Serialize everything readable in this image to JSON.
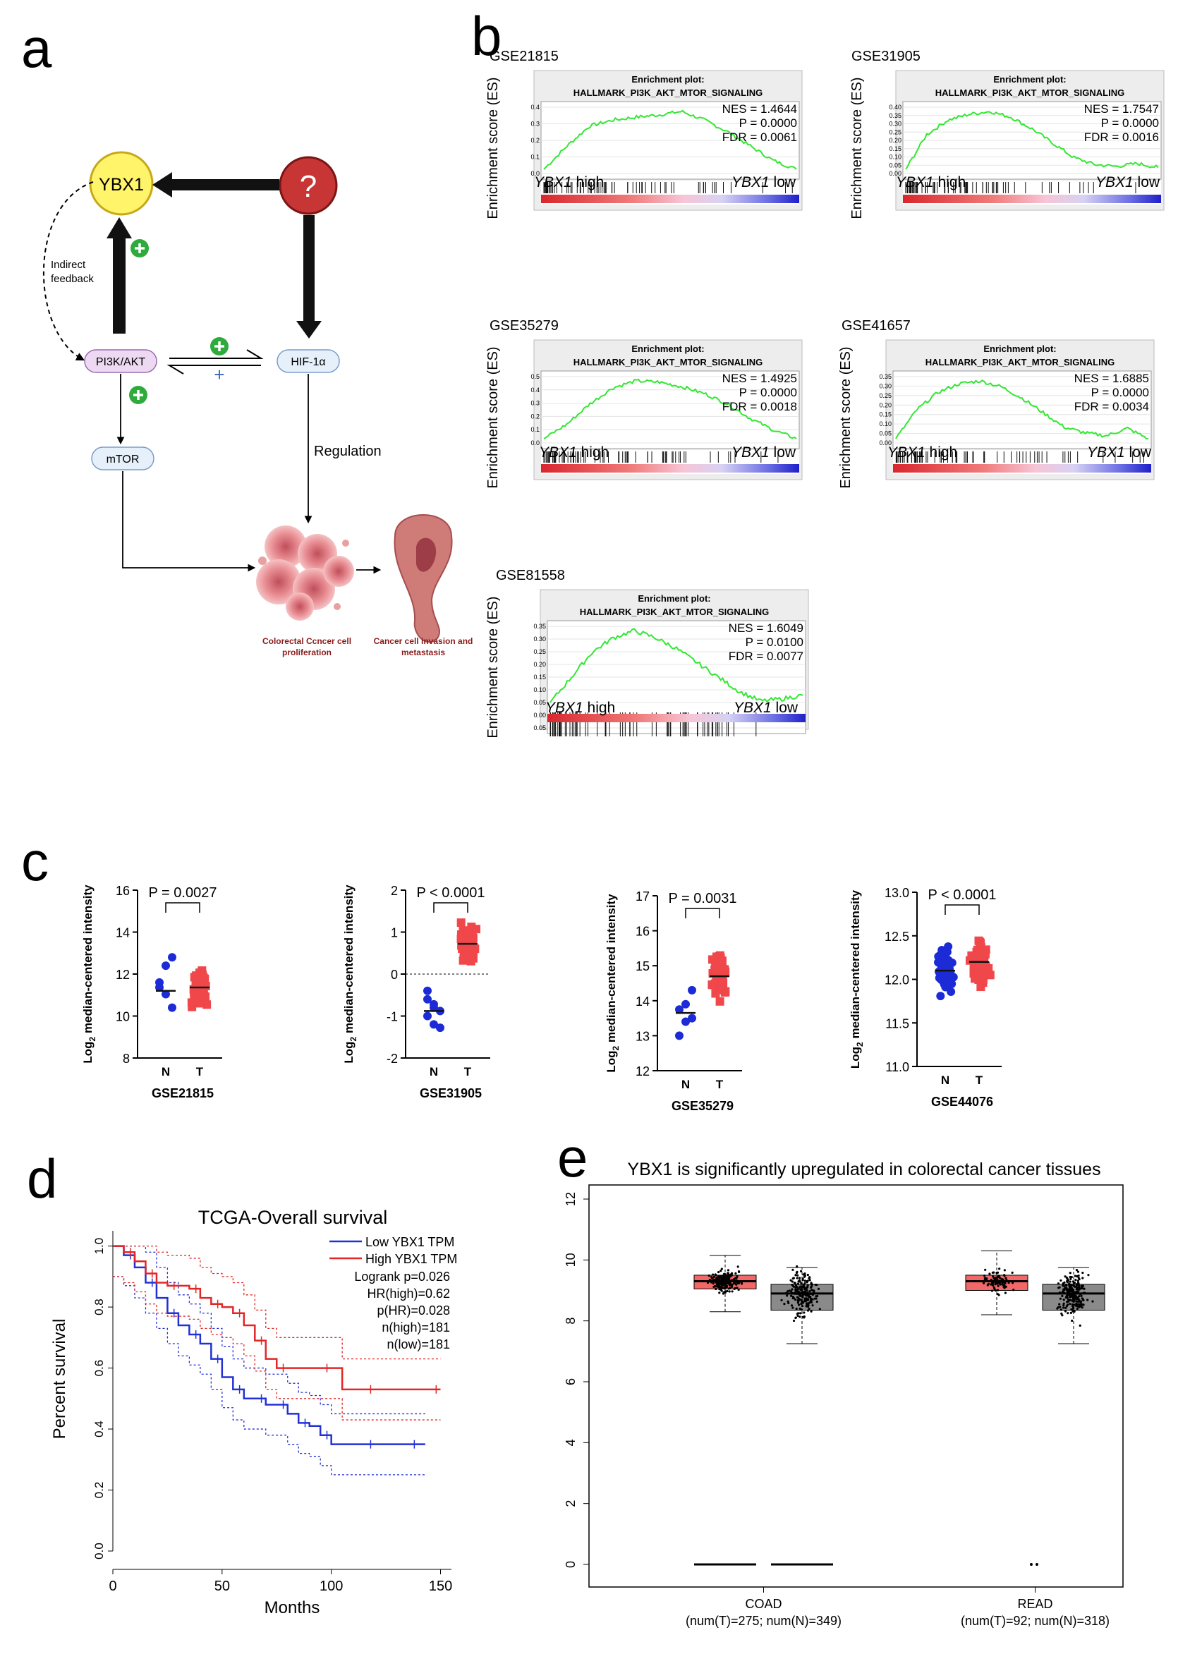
{
  "panels": {
    "a": "a",
    "b": "b",
    "c": "c",
    "d": "d",
    "e": "e"
  },
  "diagram": {
    "ybx1": "YBX1",
    "question": "?",
    "pi3k": "PI3K/AKT",
    "hif": "HIF-1α",
    "mtor": "mTOR",
    "feedback_1": "Indirect",
    "feedback_2": "feedback",
    "regulation": "Regulation",
    "plus": "+",
    "prolif_1": "Colorectal Ccncer cell",
    "prolif_2": "proliferation",
    "meta_1": "Cancer cell invasion and",
    "meta_2": "metastasis"
  },
  "gsea": {
    "plot_title_1": "Enrichment plot:",
    "plot_title_2": "HALLMARK_PI3K_AKT_MTOR_SIGNALING",
    "ylabel": "Enrichment score (ES)",
    "gene": "YBX1",
    "high": " high",
    "low": " low",
    "panels": [
      {
        "id": "GSE21815",
        "nes": "NES = 1.4644",
        "p": "P = 0.0000",
        "fdr": "FDR = 0.0061",
        "ticks": [
          "0.4",
          "0.3",
          "0.2",
          "0.1",
          "0.0"
        ]
      },
      {
        "id": "GSE31905",
        "nes": "NES = 1.7547",
        "p": "P = 0.0000",
        "fdr": "FDR = 0.0016",
        "ticks": [
          "0.40",
          "0.35",
          "0.30",
          "0.25",
          "0.20",
          "0.15",
          "0.10",
          "0.05",
          "0.00"
        ]
      },
      {
        "id": "GSE35279",
        "nes": "NES = 1.4925",
        "p": "P = 0.0000",
        "fdr": "FDR = 0.0018",
        "ticks": [
          "0.5",
          "0.4",
          "0.3",
          "0.2",
          "0.1",
          "0.0"
        ]
      },
      {
        "id": "GSE41657",
        "nes": "NES = 1.6885",
        "p": "P = 0.0000",
        "fdr": "FDR = 0.0034",
        "ticks": [
          "0.35",
          "0.30",
          "0.25",
          "0.20",
          "0.15",
          "0.10",
          "0.05",
          "0.00"
        ]
      },
      {
        "id": "GSE81558",
        "nes": "NES = 1.6049",
        "p": "P = 0.0100",
        "fdr": "FDR = 0.0077",
        "ticks": [
          "0.35",
          "0.30",
          "0.25",
          "0.20",
          "0.15",
          "0.10",
          "0.05",
          "0.00",
          "0.05"
        ]
      }
    ]
  },
  "dotplots": {
    "ylabel_pre": "Log",
    "ylabel_sub": "2",
    "ylabel_post": " median-centered intensity",
    "panels": [
      {
        "dataset": "GSE21815",
        "p": "P = 0.0027",
        "ticks": [
          "16",
          "14",
          "12",
          "10",
          "8"
        ],
        "groups": [
          "N",
          "T"
        ]
      },
      {
        "dataset": "GSE31905",
        "p": "P < 0.0001",
        "ticks": [
          "2",
          "1",
          "0",
          "-1",
          "-2"
        ],
        "groups": [
          "N",
          "T"
        ]
      },
      {
        "dataset": "GSE35279",
        "p": "P = 0.0031",
        "ticks": [
          "17",
          "16",
          "15",
          "14",
          "13",
          "12"
        ],
        "groups": [
          "N",
          "T"
        ]
      },
      {
        "dataset": "GSE44076",
        "p": "P < 0.0001",
        "ticks": [
          "13.0",
          "12.5",
          "12.0",
          "11.5",
          "11.0"
        ],
        "groups": [
          "N",
          "T"
        ]
      }
    ]
  },
  "colors": {
    "tumor": "#f0474b",
    "normal": "#1d2bd6",
    "enrich": "#33e733",
    "km_low": "#2230d6",
    "km_high": "#e22626",
    "box_t": "#f26767",
    "box_n": "#8a8a8a"
  },
  "chart_data": [
    {
      "type": "line",
      "title": "TCGA-Overall survival",
      "xlabel": "Months",
      "ylabel": "Percent survival",
      "xlim": [
        0,
        155
      ],
      "ylim": [
        0,
        1.05
      ],
      "xticks": [
        "0",
        "50",
        "100",
        "150"
      ],
      "yticks": [
        "0.0",
        "0.2",
        "0.4",
        "0.6",
        "0.8",
        "1.0"
      ],
      "legend": [
        "Low YBX1 TPM",
        "High YBX1 TPM"
      ],
      "stats": [
        "Logrank p=0.026",
        "HR(high)=0.62",
        "p(HR)=0.028",
        "n(high)=181",
        "n(low)=181"
      ],
      "series": [
        {
          "name": "Low YBX1 TPM",
          "x": [
            0,
            5,
            10,
            15,
            20,
            25,
            30,
            35,
            40,
            45,
            50,
            55,
            60,
            65,
            70,
            75,
            80,
            85,
            90,
            95,
            100,
            110,
            120,
            130,
            140,
            143
          ],
          "y": [
            1.0,
            0.97,
            0.93,
            0.88,
            0.83,
            0.78,
            0.74,
            0.71,
            0.68,
            0.63,
            0.57,
            0.53,
            0.5,
            0.5,
            0.48,
            0.48,
            0.45,
            0.42,
            0.41,
            0.38,
            0.35,
            0.35,
            0.35,
            0.35,
            0.35,
            0.35
          ]
        },
        {
          "name": "High YBX1 TPM",
          "x": [
            0,
            5,
            10,
            15,
            20,
            25,
            30,
            35,
            40,
            45,
            50,
            55,
            60,
            65,
            70,
            75,
            80,
            90,
            100,
            105,
            120,
            140,
            150
          ],
          "y": [
            1.0,
            0.98,
            0.95,
            0.91,
            0.88,
            0.87,
            0.87,
            0.86,
            0.83,
            0.81,
            0.8,
            0.78,
            0.74,
            0.69,
            0.63,
            0.6,
            0.6,
            0.6,
            0.6,
            0.53,
            0.53,
            0.53,
            0.53
          ]
        }
      ]
    },
    {
      "type": "box",
      "title": "YBX1 is significantly upregulated in colorectal cancer tissues",
      "ylim": [
        0,
        12
      ],
      "yticks": [
        "0",
        "2",
        "4",
        "6",
        "8",
        "10",
        "12"
      ],
      "categories": [
        "COAD",
        "READ"
      ],
      "category_notes": [
        "(num(T)=275; num(N)=349)",
        "(num(T)=92; num(N)=318)"
      ],
      "series": [
        {
          "name": "T",
          "values": [
            {
              "q1": 9.05,
              "median": 9.3,
              "q3": 9.5,
              "min": 8.3,
              "max": 10.15
            },
            {
              "q1": 9.0,
              "median": 9.3,
              "q3": 9.5,
              "min": 8.2,
              "max": 10.3
            }
          ]
        },
        {
          "name": "N",
          "values": [
            {
              "q1": 8.35,
              "median": 8.9,
              "q3": 9.2,
              "min": 7.25,
              "max": 9.75
            },
            {
              "q1": 8.35,
              "median": 8.9,
              "q3": 9.2,
              "min": 7.25,
              "max": 9.75
            }
          ]
        }
      ]
    }
  ]
}
